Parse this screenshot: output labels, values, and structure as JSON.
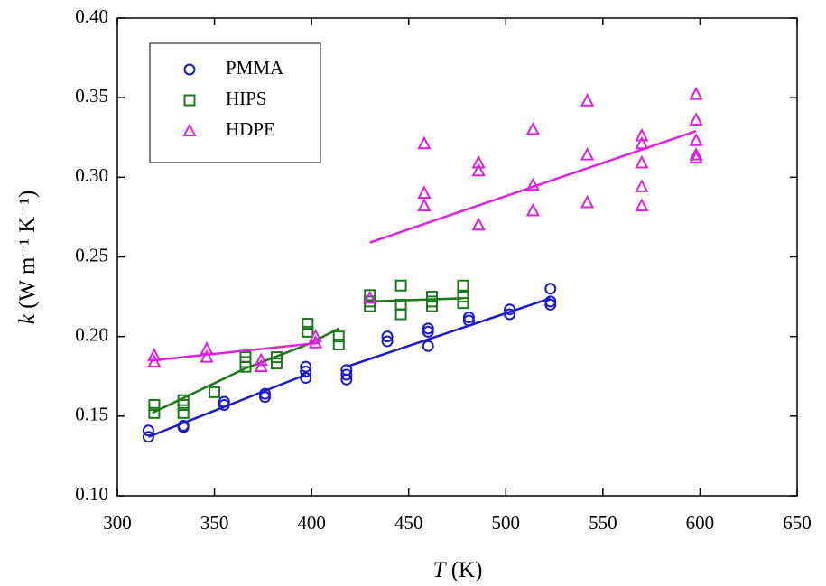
{
  "chart_data": {
    "type": "scatter",
    "xlabel": {
      "symbol": "T",
      "unit": "(K)"
    },
    "ylabel": {
      "symbol": "k",
      "unit": "(W m⁻¹ K⁻¹)"
    },
    "xlim": [
      300,
      650
    ],
    "xticks": [
      300,
      350,
      400,
      450,
      500,
      550,
      600,
      650
    ],
    "ylim": [
      0.1,
      0.4
    ],
    "yticks": [
      {
        "value": 0.1,
        "label": "0.10"
      },
      0.15,
      {
        "value": 0.2,
        "label": "0.20"
      },
      0.25,
      {
        "value": 0.3,
        "label": "0.30"
      },
      0.35,
      {
        "value": 0.4,
        "label": "0.40"
      }
    ],
    "legend": "upper-left",
    "series": [
      {
        "name": "PMMA",
        "color": "#1a1acc",
        "marker": "circle",
        "x": [
          316,
          316,
          334,
          334,
          355,
          355,
          376,
          376,
          397,
          397,
          397,
          418,
          418,
          418,
          439,
          439,
          460,
          460,
          460,
          481,
          481,
          502,
          502,
          523,
          523,
          523
        ],
        "values": [
          0.141,
          0.137,
          0.144,
          0.143,
          0.159,
          0.157,
          0.164,
          0.162,
          0.181,
          0.178,
          0.174,
          0.179,
          0.176,
          0.173,
          0.2,
          0.197,
          0.205,
          0.203,
          0.194,
          0.212,
          0.21,
          0.217,
          0.214,
          0.23,
          0.222,
          0.22
        ],
        "fit": {
          "x": [
            316,
            397,
            null,
            418,
            523
          ],
          "values": [
            0.137,
            0.176,
            null,
            0.181,
            0.224
          ]
        }
      },
      {
        "name": "HIPS",
        "color": "#1a7a1a",
        "marker": "square",
        "x": [
          319,
          319,
          334,
          334,
          334,
          350,
          366,
          366,
          366,
          382,
          382,
          398,
          398,
          414,
          414,
          430,
          430,
          430,
          446,
          446,
          446,
          462,
          462,
          462,
          478,
          478,
          478
        ],
        "values": [
          0.157,
          0.152,
          0.16,
          0.157,
          0.152,
          0.165,
          0.187,
          0.184,
          0.181,
          0.187,
          0.183,
          0.208,
          0.203,
          0.2,
          0.195,
          0.226,
          0.222,
          0.219,
          0.232,
          0.22,
          0.214,
          0.225,
          0.222,
          0.219,
          0.232,
          0.225,
          0.221
        ],
        "fit": {
          "x": [
            318,
            366,
            398,
            414,
            null,
            430,
            478
          ],
          "values": [
            0.152,
            0.18,
            0.195,
            0.205,
            null,
            0.222,
            0.224
          ]
        }
      },
      {
        "name": "HDPE",
        "color": "#e020e0",
        "marker": "triangle",
        "x": [
          319,
          319,
          346,
          346,
          374,
          374,
          402,
          402,
          430,
          458,
          458,
          458,
          486,
          486,
          486,
          514,
          514,
          514,
          542,
          542,
          542,
          570,
          570,
          570,
          570,
          570,
          598,
          598,
          598,
          598,
          598
        ],
        "values": [
          0.188,
          0.184,
          0.192,
          0.187,
          0.185,
          0.181,
          0.2,
          0.196,
          0.224,
          0.321,
          0.29,
          0.282,
          0.309,
          0.304,
          0.27,
          0.33,
          0.295,
          0.279,
          0.348,
          0.314,
          0.284,
          0.326,
          0.321,
          0.309,
          0.294,
          0.282,
          0.352,
          0.336,
          0.323,
          0.314,
          0.312
        ],
        "fit": {
          "x": [
            318,
            404,
            null,
            430,
            598
          ],
          "values": [
            0.185,
            0.196,
            null,
            0.259,
            0.329
          ]
        }
      }
    ]
  }
}
